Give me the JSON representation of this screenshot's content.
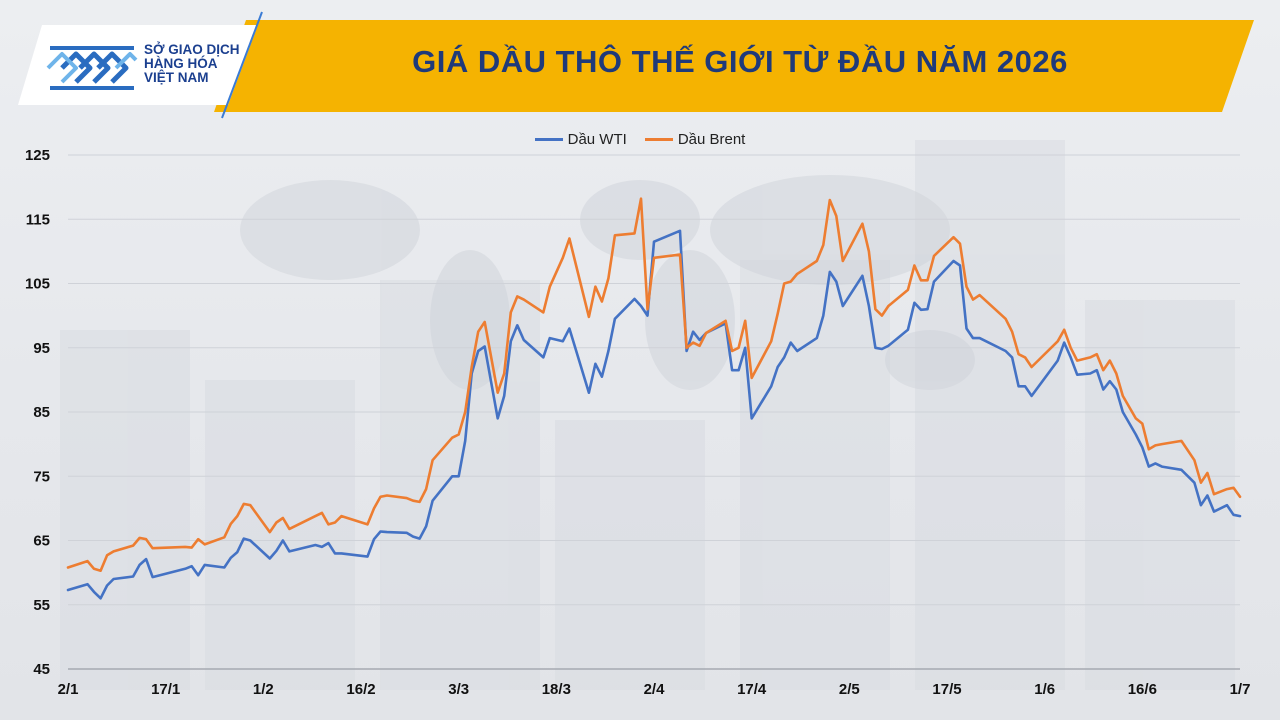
{
  "header": {
    "title": "GIÁ DẦU THÔ THẾ GIỚI TỪ ĐẦU NĂM 2026",
    "org_name_lines": [
      "SỞ GIAO DỊCH",
      "HÀNG HÓA",
      "VIỆT NAM"
    ],
    "logo_icon": "mxv-diamond-logo",
    "banner_color": "#f5b301",
    "title_color": "#1f3a7a"
  },
  "chart_data": {
    "type": "line",
    "title": "GIÁ DẦU THÔ THẾ GIỚI TỪ ĐẦU NĂM 2026",
    "xlabel": "",
    "ylabel": "",
    "ylim": [
      45,
      125
    ],
    "yticks": [
      45,
      55,
      65,
      75,
      85,
      95,
      105,
      115,
      125
    ],
    "x_range": [
      "2026-01-02",
      "2026-07-01"
    ],
    "xtick_labels": [
      {
        "label": "2/1",
        "date": "2026-01-02"
      },
      {
        "label": "17/1",
        "date": "2026-01-17"
      },
      {
        "label": "1/2",
        "date": "2026-02-01"
      },
      {
        "label": "16/2",
        "date": "2026-02-16"
      },
      {
        "label": "3/3",
        "date": "2026-03-03"
      },
      {
        "label": "18/3",
        "date": "2026-03-18"
      },
      {
        "label": "2/4",
        "date": "2026-04-02"
      },
      {
        "label": "17/4",
        "date": "2026-04-17"
      },
      {
        "label": "2/5",
        "date": "2026-05-02"
      },
      {
        "label": "17/5",
        "date": "2026-05-17"
      },
      {
        "label": "1/6",
        "date": "2026-06-01"
      },
      {
        "label": "16/6",
        "date": "2026-06-16"
      },
      {
        "label": "1/7",
        "date": "2026-07-01"
      }
    ],
    "grid": true,
    "legend_position": "top-center",
    "series": [
      {
        "name": "Dầu WTI",
        "color": "#4472c4",
        "points": [
          [
            "2026-01-02",
            57.3
          ],
          [
            "2026-01-05",
            58.2
          ],
          [
            "2026-01-06",
            57.0
          ],
          [
            "2026-01-07",
            56.0
          ],
          [
            "2026-01-08",
            58.0
          ],
          [
            "2026-01-09",
            59.0
          ],
          [
            "2026-01-12",
            59.4
          ],
          [
            "2026-01-13",
            61.2
          ],
          [
            "2026-01-14",
            62.1
          ],
          [
            "2026-01-15",
            59.3
          ],
          [
            "2026-01-20",
            60.6
          ],
          [
            "2026-01-21",
            61.0
          ],
          [
            "2026-01-22",
            59.6
          ],
          [
            "2026-01-23",
            61.2
          ],
          [
            "2026-01-26",
            60.8
          ],
          [
            "2026-01-27",
            62.3
          ],
          [
            "2026-01-28",
            63.2
          ],
          [
            "2026-01-29",
            65.3
          ],
          [
            "2026-01-30",
            65.0
          ],
          [
            "2026-02-02",
            62.2
          ],
          [
            "2026-02-03",
            63.4
          ],
          [
            "2026-02-04",
            65.0
          ],
          [
            "2026-02-05",
            63.3
          ],
          [
            "2026-02-09",
            64.3
          ],
          [
            "2026-02-10",
            64.0
          ],
          [
            "2026-02-11",
            64.6
          ],
          [
            "2026-02-12",
            63.0
          ],
          [
            "2026-02-13",
            63.0
          ],
          [
            "2026-02-17",
            62.5
          ],
          [
            "2026-02-18",
            65.2
          ],
          [
            "2026-02-19",
            66.4
          ],
          [
            "2026-02-20",
            66.3
          ],
          [
            "2026-02-23",
            66.2
          ],
          [
            "2026-02-24",
            65.6
          ],
          [
            "2026-02-25",
            65.3
          ],
          [
            "2026-02-26",
            67.2
          ],
          [
            "2026-02-27",
            71.2
          ],
          [
            "2026-03-02",
            75.0
          ],
          [
            "2026-03-03",
            75.0
          ],
          [
            "2026-03-04",
            80.5
          ],
          [
            "2026-03-05",
            91.0
          ],
          [
            "2026-03-06",
            94.5
          ],
          [
            "2026-03-07",
            95.2
          ],
          [
            "2026-03-09",
            84.0
          ],
          [
            "2026-03-10",
            87.5
          ],
          [
            "2026-03-11",
            96.0
          ],
          [
            "2026-03-12",
            98.5
          ],
          [
            "2026-03-13",
            96.2
          ],
          [
            "2026-03-16",
            93.5
          ],
          [
            "2026-03-17",
            96.5
          ],
          [
            "2026-03-19",
            96.0
          ],
          [
            "2026-03-20",
            98.0
          ],
          [
            "2026-03-23",
            88.0
          ],
          [
            "2026-03-24",
            92.5
          ],
          [
            "2026-03-25",
            90.5
          ],
          [
            "2026-03-26",
            94.5
          ],
          [
            "2026-03-27",
            99.5
          ],
          [
            "2026-03-30",
            102.6
          ],
          [
            "2026-03-31",
            101.5
          ],
          [
            "2026-04-01",
            100.0
          ],
          [
            "2026-04-02",
            111.5
          ],
          [
            "2026-04-06",
            113.2
          ],
          [
            "2026-04-07",
            94.5
          ],
          [
            "2026-04-08",
            97.5
          ],
          [
            "2026-04-09",
            96.2
          ],
          [
            "2026-04-10",
            97.3
          ],
          [
            "2026-04-13",
            98.8
          ],
          [
            "2026-04-14",
            91.5
          ],
          [
            "2026-04-15",
            91.5
          ],
          [
            "2026-04-16",
            95.0
          ],
          [
            "2026-04-17",
            84.0
          ],
          [
            "2026-04-20",
            89.0
          ],
          [
            "2026-04-21",
            92.0
          ],
          [
            "2026-04-22",
            93.5
          ],
          [
            "2026-04-23",
            95.8
          ],
          [
            "2026-04-24",
            94.5
          ],
          [
            "2026-04-27",
            96.5
          ],
          [
            "2026-04-28",
            100.0
          ],
          [
            "2026-04-29",
            106.8
          ],
          [
            "2026-04-30",
            105.3
          ],
          [
            "2026-05-01",
            101.5
          ],
          [
            "2026-05-04",
            106.2
          ],
          [
            "2026-05-05",
            101.5
          ],
          [
            "2026-05-06",
            95.0
          ],
          [
            "2026-05-07",
            94.8
          ],
          [
            "2026-05-08",
            95.3
          ],
          [
            "2026-05-11",
            97.8
          ],
          [
            "2026-05-12",
            102.0
          ],
          [
            "2026-05-13",
            100.9
          ],
          [
            "2026-05-14",
            101.0
          ],
          [
            "2026-05-15",
            105.3
          ],
          [
            "2026-05-18",
            108.5
          ],
          [
            "2026-05-19",
            107.8
          ],
          [
            "2026-05-20",
            98.0
          ],
          [
            "2026-05-21",
            96.5
          ],
          [
            "2026-05-22",
            96.5
          ],
          [
            "2026-05-26",
            94.5
          ],
          [
            "2026-05-27",
            93.5
          ],
          [
            "2026-05-28",
            89.0
          ],
          [
            "2026-05-29",
            89.0
          ],
          [
            "2026-05-30",
            87.5
          ],
          [
            "2026-06-03",
            93.0
          ],
          [
            "2026-06-04",
            95.8
          ],
          [
            "2026-06-05",
            93.5
          ],
          [
            "2026-06-06",
            90.8
          ],
          [
            "2026-06-08",
            91.0
          ],
          [
            "2026-06-09",
            91.5
          ],
          [
            "2026-06-10",
            88.5
          ],
          [
            "2026-06-11",
            89.8
          ],
          [
            "2026-06-12",
            88.5
          ],
          [
            "2026-06-13",
            85.0
          ],
          [
            "2026-06-15",
            81.5
          ],
          [
            "2026-06-16",
            79.5
          ],
          [
            "2026-06-17",
            76.5
          ],
          [
            "2026-06-18",
            77.0
          ],
          [
            "2026-06-19",
            76.5
          ],
          [
            "2026-06-22",
            76.0
          ],
          [
            "2026-06-24",
            74.0
          ],
          [
            "2026-06-25",
            70.5
          ],
          [
            "2026-06-26",
            72.0
          ],
          [
            "2026-06-27",
            69.5
          ],
          [
            "2026-06-29",
            70.5
          ],
          [
            "2026-06-30",
            69.0
          ],
          [
            "2026-07-01",
            68.8
          ]
        ]
      },
      {
        "name": "Dầu Brent",
        "color": "#ed7d31",
        "points": [
          [
            "2026-01-02",
            60.8
          ],
          [
            "2026-01-05",
            61.8
          ],
          [
            "2026-01-06",
            60.6
          ],
          [
            "2026-01-07",
            60.3
          ],
          [
            "2026-01-08",
            62.7
          ],
          [
            "2026-01-09",
            63.3
          ],
          [
            "2026-01-12",
            64.2
          ],
          [
            "2026-01-13",
            65.4
          ],
          [
            "2026-01-14",
            65.2
          ],
          [
            "2026-01-15",
            63.8
          ],
          [
            "2026-01-20",
            64.0
          ],
          [
            "2026-01-21",
            63.9
          ],
          [
            "2026-01-22",
            65.2
          ],
          [
            "2026-01-23",
            64.4
          ],
          [
            "2026-01-26",
            65.5
          ],
          [
            "2026-01-27",
            67.6
          ],
          [
            "2026-01-28",
            68.8
          ],
          [
            "2026-01-29",
            70.7
          ],
          [
            "2026-01-30",
            70.5
          ],
          [
            "2026-02-02",
            66.3
          ],
          [
            "2026-02-03",
            67.8
          ],
          [
            "2026-02-04",
            68.5
          ],
          [
            "2026-02-05",
            66.8
          ],
          [
            "2026-02-09",
            68.8
          ],
          [
            "2026-02-10",
            69.3
          ],
          [
            "2026-02-11",
            67.5
          ],
          [
            "2026-02-12",
            67.8
          ],
          [
            "2026-02-13",
            68.8
          ],
          [
            "2026-02-17",
            67.5
          ],
          [
            "2026-02-18",
            70.0
          ],
          [
            "2026-02-19",
            71.8
          ],
          [
            "2026-02-20",
            72.0
          ],
          [
            "2026-02-23",
            71.6
          ],
          [
            "2026-02-24",
            71.2
          ],
          [
            "2026-02-25",
            71.0
          ],
          [
            "2026-02-26",
            73.0
          ],
          [
            "2026-02-27",
            77.5
          ],
          [
            "2026-03-02",
            81.0
          ],
          [
            "2026-03-03",
            81.5
          ],
          [
            "2026-03-04",
            85.0
          ],
          [
            "2026-03-05",
            92.0
          ],
          [
            "2026-03-06",
            97.5
          ],
          [
            "2026-03-07",
            99.0
          ],
          [
            "2026-03-09",
            88.0
          ],
          [
            "2026-03-10",
            91.0
          ],
          [
            "2026-03-11",
            100.5
          ],
          [
            "2026-03-12",
            103.0
          ],
          [
            "2026-03-13",
            102.5
          ],
          [
            "2026-03-16",
            100.5
          ],
          [
            "2026-03-17",
            104.5
          ],
          [
            "2026-03-19",
            109.0
          ],
          [
            "2026-03-20",
            112.0
          ],
          [
            "2026-03-23",
            99.8
          ],
          [
            "2026-03-24",
            104.5
          ],
          [
            "2026-03-25",
            102.2
          ],
          [
            "2026-03-26",
            105.8
          ],
          [
            "2026-03-27",
            112.5
          ],
          [
            "2026-03-30",
            112.8
          ],
          [
            "2026-03-31",
            118.2
          ],
          [
            "2026-04-01",
            101.0
          ],
          [
            "2026-04-02",
            109.0
          ],
          [
            "2026-04-06",
            109.5
          ],
          [
            "2026-04-07",
            95.0
          ],
          [
            "2026-04-08",
            95.8
          ],
          [
            "2026-04-09",
            95.3
          ],
          [
            "2026-04-10",
            97.3
          ],
          [
            "2026-04-13",
            99.2
          ],
          [
            "2026-04-14",
            94.5
          ],
          [
            "2026-04-15",
            95.0
          ],
          [
            "2026-04-16",
            99.2
          ],
          [
            "2026-04-17",
            90.3
          ],
          [
            "2026-04-20",
            96.0
          ],
          [
            "2026-04-21",
            100.3
          ],
          [
            "2026-04-22",
            105.0
          ],
          [
            "2026-04-23",
            105.3
          ],
          [
            "2026-04-24",
            106.5
          ],
          [
            "2026-04-27",
            108.5
          ],
          [
            "2026-04-28",
            111.0
          ],
          [
            "2026-04-29",
            118.0
          ],
          [
            "2026-04-30",
            115.5
          ],
          [
            "2026-05-01",
            108.5
          ],
          [
            "2026-05-04",
            114.3
          ],
          [
            "2026-05-05",
            110.0
          ],
          [
            "2026-05-06",
            101.0
          ],
          [
            "2026-05-07",
            100.0
          ],
          [
            "2026-05-08",
            101.5
          ],
          [
            "2026-05-11",
            104.0
          ],
          [
            "2026-05-12",
            107.8
          ],
          [
            "2026-05-13",
            105.5
          ],
          [
            "2026-05-14",
            105.5
          ],
          [
            "2026-05-15",
            109.3
          ],
          [
            "2026-05-18",
            112.2
          ],
          [
            "2026-05-19",
            111.2
          ],
          [
            "2026-05-20",
            104.5
          ],
          [
            "2026-05-21",
            102.5
          ],
          [
            "2026-05-22",
            103.2
          ],
          [
            "2026-05-26",
            99.5
          ],
          [
            "2026-05-27",
            97.5
          ],
          [
            "2026-05-28",
            94.0
          ],
          [
            "2026-05-29",
            93.5
          ],
          [
            "2026-05-30",
            92.0
          ],
          [
            "2026-06-03",
            96.0
          ],
          [
            "2026-06-04",
            97.8
          ],
          [
            "2026-06-05",
            95.0
          ],
          [
            "2026-06-06",
            93.0
          ],
          [
            "2026-06-08",
            93.5
          ],
          [
            "2026-06-09",
            94.0
          ],
          [
            "2026-06-10",
            91.5
          ],
          [
            "2026-06-11",
            93.0
          ],
          [
            "2026-06-12",
            91.0
          ],
          [
            "2026-06-13",
            87.5
          ],
          [
            "2026-06-15",
            84.0
          ],
          [
            "2026-06-16",
            83.2
          ],
          [
            "2026-06-17",
            79.2
          ],
          [
            "2026-06-18",
            79.8
          ],
          [
            "2026-06-19",
            80.0
          ],
          [
            "2026-06-22",
            80.5
          ],
          [
            "2026-06-24",
            77.5
          ],
          [
            "2026-06-25",
            74.0
          ],
          [
            "2026-06-26",
            75.5
          ],
          [
            "2026-06-27",
            72.2
          ],
          [
            "2026-06-29",
            73.0
          ],
          [
            "2026-06-30",
            73.2
          ],
          [
            "2026-07-01",
            71.8
          ]
        ]
      }
    ]
  }
}
